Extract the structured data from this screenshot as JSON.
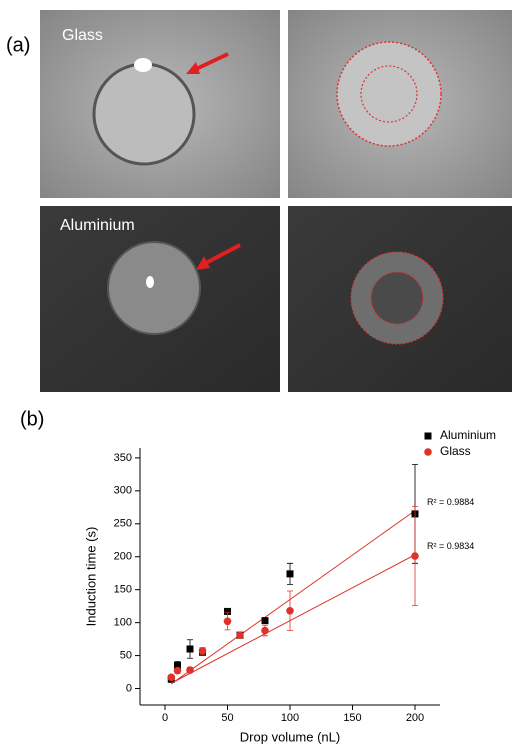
{
  "panels": {
    "a": "(a)",
    "b": "(b)"
  },
  "images": {
    "glass": "Glass",
    "aluminium": "Aluminium"
  },
  "chart_data": {
    "type": "scatter",
    "x_label": "Drop volume (nL)",
    "y_label": "Induction time (s)",
    "x": [
      5,
      10,
      20,
      30,
      50,
      60,
      80,
      100,
      200
    ],
    "series": [
      {
        "name": "Aluminium",
        "color": "#000000",
        "marker": "square",
        "values": [
          14,
          35,
          60,
          55,
          117,
          81,
          103,
          174,
          265
        ],
        "errors": [
          3,
          6,
          14,
          4,
          4,
          3,
          4,
          16,
          75
        ],
        "fit_x": [
          5,
          200
        ],
        "fit_y": [
          7,
          270
        ],
        "fit_label": "R² = 0.9884"
      },
      {
        "name": "Glass",
        "color": "#e0322b",
        "marker": "circle",
        "values": [
          17,
          27,
          28,
          57,
          102,
          81,
          88,
          118,
          201
        ],
        "errors": [
          3,
          4,
          4,
          5,
          13,
          3,
          8,
          30,
          75
        ],
        "fit_x": [
          5,
          200
        ],
        "fit_y": [
          8,
          203
        ],
        "fit_label": "R² = 0.9834"
      }
    ],
    "fit_color": "#e0322b",
    "xlim": [
      -20,
      220
    ],
    "ylim": [
      -25,
      365
    ],
    "xticks": [
      0,
      50,
      100,
      150,
      200
    ],
    "yticks": [
      0,
      50,
      100,
      150,
      200,
      250,
      300,
      350
    ],
    "legend": "upper-right"
  }
}
